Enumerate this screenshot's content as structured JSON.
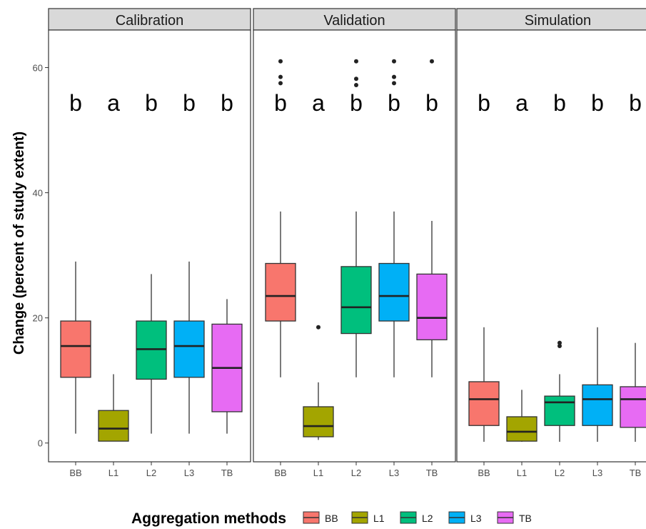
{
  "chart_data": {
    "type": "box",
    "ylabel": "Change (percent of study extent)",
    "xlabel": "",
    "ylim": [
      -3,
      66
    ],
    "yticks": [
      0,
      20,
      40,
      60
    ],
    "grid": false,
    "categories": [
      "BB",
      "L1",
      "L2",
      "L3",
      "TB"
    ],
    "colors": {
      "BB": "#F8766D",
      "L1": "#A3A500",
      "L2": "#00BF7D",
      "L3": "#00B0F6",
      "TB": "#E76BF3"
    },
    "legend": {
      "title": "Aggregation methods",
      "placement": "bottom",
      "items": [
        "BB",
        "L1",
        "L2",
        "L3",
        "TB"
      ]
    },
    "panels": [
      {
        "title": "Calibration",
        "boxes": [
          {
            "category": "BB",
            "whisker_low": 1.5,
            "q1": 10.5,
            "median": 15.5,
            "q3": 19.5,
            "whisker_high": 29,
            "outliers": [],
            "label": "b"
          },
          {
            "category": "L1",
            "whisker_low": 0.3,
            "q1": 0.3,
            "median": 2.3,
            "q3": 5.2,
            "whisker_high": 11,
            "outliers": [],
            "label": "a"
          },
          {
            "category": "L2",
            "whisker_low": 1.5,
            "q1": 10.2,
            "median": 15,
            "q3": 19.5,
            "whisker_high": 27,
            "outliers": [],
            "label": "b"
          },
          {
            "category": "L3",
            "whisker_low": 1.5,
            "q1": 10.5,
            "median": 15.5,
            "q3": 19.5,
            "whisker_high": 29,
            "outliers": [],
            "label": "b"
          },
          {
            "category": "TB",
            "whisker_low": 1.5,
            "q1": 5,
            "median": 12,
            "q3": 19,
            "whisker_high": 23,
            "outliers": [],
            "label": "b"
          }
        ]
      },
      {
        "title": "Validation",
        "boxes": [
          {
            "category": "BB",
            "whisker_low": 10.5,
            "q1": 19.5,
            "median": 23.5,
            "q3": 28.7,
            "whisker_high": 37,
            "outliers": [
              57.5,
              58.5,
              61
            ],
            "label": "b"
          },
          {
            "category": "L1",
            "whisker_low": 0.5,
            "q1": 1,
            "median": 2.7,
            "q3": 5.8,
            "whisker_high": 9.7,
            "outliers": [
              18.5
            ],
            "label": "a"
          },
          {
            "category": "L2",
            "whisker_low": 10.5,
            "q1": 17.5,
            "median": 21.7,
            "q3": 28.2,
            "whisker_high": 37,
            "outliers": [
              57.2,
              58.2,
              61
            ],
            "label": "b"
          },
          {
            "category": "L3",
            "whisker_low": 10.5,
            "q1": 19.5,
            "median": 23.5,
            "q3": 28.7,
            "whisker_high": 37,
            "outliers": [
              57.5,
              58.5,
              61
            ],
            "label": "b"
          },
          {
            "category": "TB",
            "whisker_low": 10.5,
            "q1": 16.5,
            "median": 20,
            "q3": 27,
            "whisker_high": 35.5,
            "outliers": [
              61
            ],
            "label": "b"
          }
        ]
      },
      {
        "title": "Simulation",
        "boxes": [
          {
            "category": "BB",
            "whisker_low": 0.2,
            "q1": 2.8,
            "median": 7,
            "q3": 9.8,
            "whisker_high": 18.5,
            "outliers": [],
            "label": "b"
          },
          {
            "category": "L1",
            "whisker_low": 0.2,
            "q1": 0.3,
            "median": 1.8,
            "q3": 4.2,
            "whisker_high": 8.5,
            "outliers": [],
            "label": "a"
          },
          {
            "category": "L2",
            "whisker_low": 0.2,
            "q1": 2.8,
            "median": 6.5,
            "q3": 7.5,
            "whisker_high": 11,
            "outliers": [
              15.5,
              16
            ],
            "label": "b"
          },
          {
            "category": "L3",
            "whisker_low": 0.2,
            "q1": 2.8,
            "median": 7,
            "q3": 9.3,
            "whisker_high": 18.5,
            "outliers": [],
            "label": "b"
          },
          {
            "category": "TB",
            "whisker_low": 0.2,
            "q1": 2.5,
            "median": 7,
            "q3": 9,
            "whisker_high": 16,
            "outliers": [],
            "label": "b"
          }
        ]
      }
    ]
  }
}
